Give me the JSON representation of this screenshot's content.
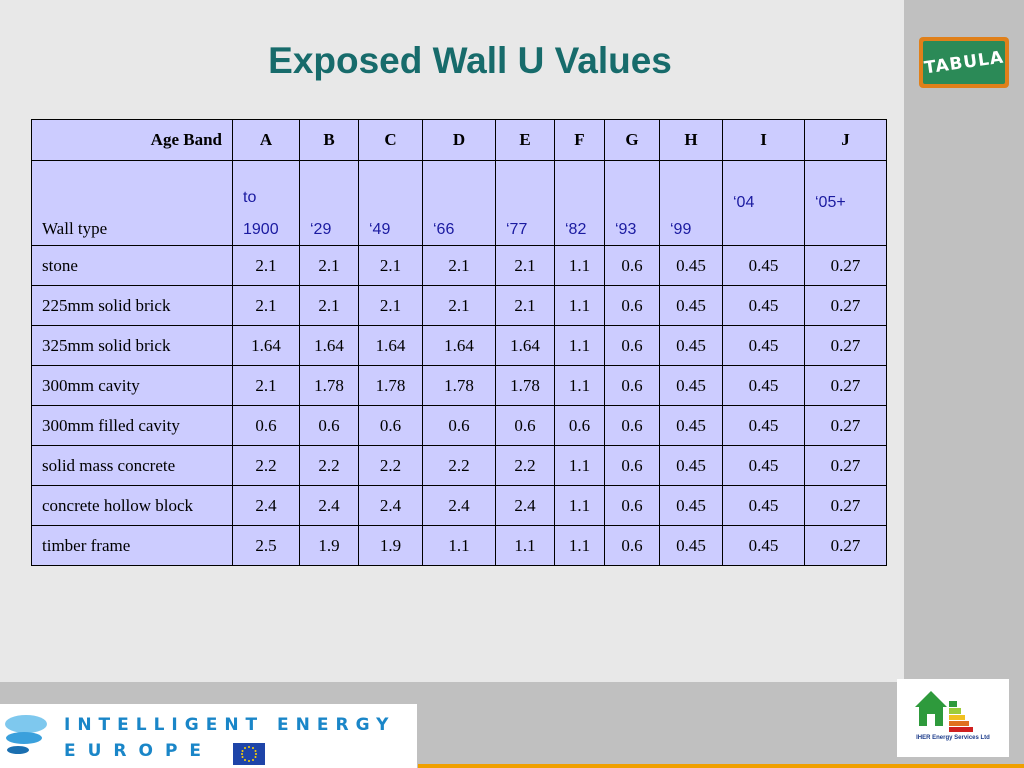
{
  "title": "Exposed Wall U Values",
  "tabula_logo": "TABULA",
  "table": {
    "band_label": "Age Band",
    "bands": [
      "A",
      "B",
      "C",
      "D",
      "E",
      "F",
      "G",
      "H",
      "I",
      "J"
    ],
    "walltype_label": "Wall type",
    "year_first_top": "to",
    "years": [
      "1900",
      "‘29",
      "‘49",
      "‘66",
      "‘77",
      "‘82",
      "‘93",
      "‘99",
      "‘04",
      "‘05+"
    ],
    "rows": [
      {
        "label": "stone",
        "values": [
          "2.1",
          "2.1",
          "2.1",
          "2.1",
          "2.1",
          "1.1",
          "0.6",
          "0.45",
          "0.45",
          "0.27"
        ]
      },
      {
        "label": "225mm solid brick",
        "values": [
          "2.1",
          "2.1",
          "2.1",
          "2.1",
          "2.1",
          "1.1",
          "0.6",
          "0.45",
          "0.45",
          "0.27"
        ]
      },
      {
        "label": "325mm solid brick",
        "values": [
          "1.64",
          "1.64",
          "1.64",
          "1.64",
          "1.64",
          "1.1",
          "0.6",
          "0.45",
          "0.45",
          "0.27"
        ]
      },
      {
        "label": "300mm cavity",
        "values": [
          "2.1",
          "1.78",
          "1.78",
          "1.78",
          "1.78",
          "1.1",
          "0.6",
          "0.45",
          "0.45",
          "0.27"
        ]
      },
      {
        "label": "300mm filled cavity",
        "values": [
          "0.6",
          "0.6",
          "0.6",
          "0.6",
          "0.6",
          "0.6",
          "0.6",
          "0.45",
          "0.45",
          "0.27"
        ]
      },
      {
        "label": "solid mass concrete",
        "values": [
          "2.2",
          "2.2",
          "2.2",
          "2.2",
          "2.2",
          "1.1",
          "0.6",
          "0.45",
          "0.45",
          "0.27"
        ]
      },
      {
        "label": "concrete hollow block",
        "values": [
          "2.4",
          "2.4",
          "2.4",
          "2.4",
          "2.4",
          "1.1",
          "0.6",
          "0.45",
          "0.45",
          "0.27"
        ]
      },
      {
        "label": "timber frame",
        "values": [
          "2.5",
          "1.9",
          "1.9",
          "1.1",
          "1.1",
          "1.1",
          "0.6",
          "0.45",
          "0.45",
          "0.27"
        ]
      }
    ]
  },
  "footer": {
    "iee_line1": "INTELLIGENT ENERGY",
    "iee_line2": "EUROPE",
    "iher_label": "IHER Energy Services Ltd"
  },
  "colors": {
    "title": "#176b6b",
    "table_bg": "#ccccff",
    "year_text": "#1a1aa0",
    "iee_blue": "#1a86c8",
    "accent_orange": "#f0a000"
  }
}
